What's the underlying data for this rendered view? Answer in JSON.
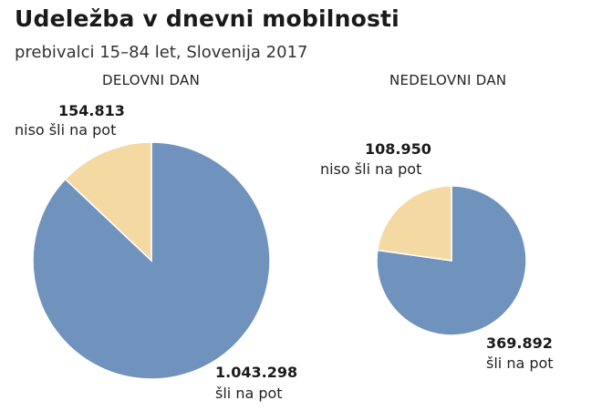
{
  "title": "Udeležba v dnevni mobilnosti",
  "subtitle": "prebivalci 15–84 let, Slovenija 2017",
  "chart_data": [
    {
      "type": "pie",
      "title": "DELOVNI DAN",
      "slices": [
        {
          "name": "šli na pot",
          "value": 1043298,
          "value_label": "1.043.298",
          "color": "#7093bd"
        },
        {
          "name": "niso šli na pot",
          "value": 154813,
          "value_label": "154.813",
          "color": "#f4d9a2"
        }
      ]
    },
    {
      "type": "pie",
      "title": "NEDELOVNI DAN",
      "slices": [
        {
          "name": "šli na pot",
          "value": 369892,
          "value_label": "369.892",
          "color": "#7093bd"
        },
        {
          "name": "niso šli na pot",
          "value": 108950,
          "value_label": "108.950",
          "color": "#f4d9a2"
        }
      ]
    }
  ]
}
